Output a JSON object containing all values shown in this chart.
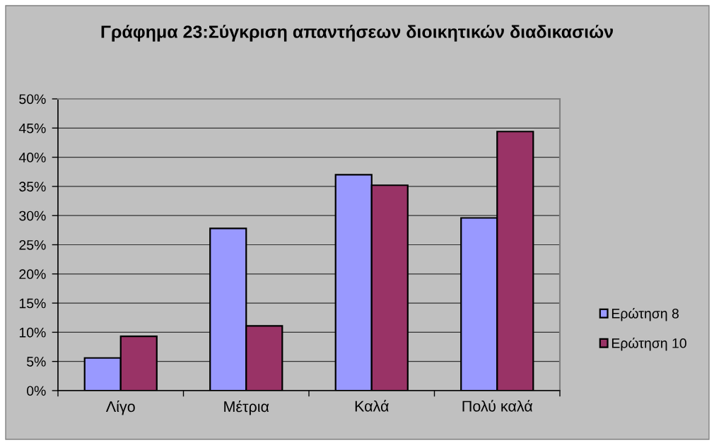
{
  "chart_data": {
    "type": "bar",
    "title": "Γράφημα 23:Σύγκριση απαντήσεων διοικητικών διαδικασιών",
    "categories": [
      "Λίγο",
      "Μέτρια",
      "Καλά",
      "Πολύ καλά"
    ],
    "series": [
      {
        "name": "Ερώτηση 8",
        "color": "#9999ff",
        "values": [
          5.6,
          27.8,
          37.0,
          29.6
        ]
      },
      {
        "name": "Ερώτηση 10",
        "color": "#993366",
        "values": [
          9.3,
          11.1,
          35.2,
          44.4
        ]
      }
    ],
    "ylim": [
      0,
      50
    ],
    "yticks": [
      {
        "value": 0,
        "label": "0%"
      },
      {
        "value": 5,
        "label": "5%"
      },
      {
        "value": 10,
        "label": "10%"
      },
      {
        "value": 15,
        "label": "15%"
      },
      {
        "value": 20,
        "label": "20%"
      },
      {
        "value": 25,
        "label": "25%"
      },
      {
        "value": 30,
        "label": "30%"
      },
      {
        "value": 35,
        "label": "35%"
      },
      {
        "value": 40,
        "label": "40%"
      },
      {
        "value": 45,
        "label": "45%"
      },
      {
        "value": 50,
        "label": "50%"
      }
    ],
    "grid": "y",
    "legend": "right"
  }
}
